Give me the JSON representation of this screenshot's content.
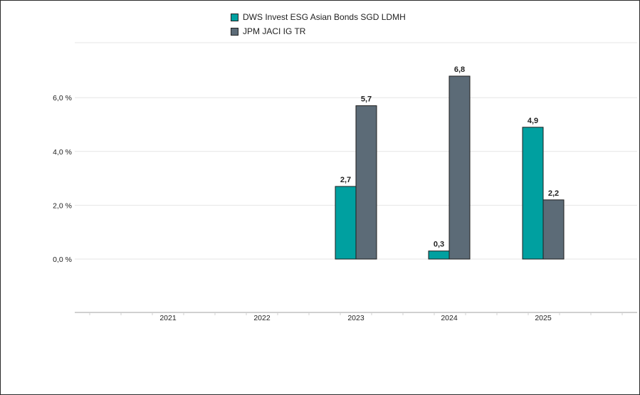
{
  "chart_data": {
    "type": "bar",
    "categories": [
      "2021",
      "2022",
      "2023",
      "2024",
      "2025"
    ],
    "series": [
      {
        "name": "DWS Invest ESG Asian Bonds SGD LDMH",
        "color": "#00A0A0",
        "values": [
          null,
          null,
          2.7,
          0.3,
          4.9
        ],
        "labels": [
          "",
          "",
          "2,7",
          "0,3",
          "4,9"
        ]
      },
      {
        "name": "JPM JACI IG TR",
        "color": "#5C6B77",
        "values": [
          null,
          null,
          5.7,
          6.8,
          2.2
        ],
        "labels": [
          "",
          "",
          "5,7",
          "6,8",
          "2,2"
        ]
      }
    ],
    "yticks": [
      0,
      2,
      4,
      6
    ],
    "ytick_labels": [
      "0,0 %",
      "2,0 %",
      "4,0 %",
      "6,0 %"
    ],
    "ylim": [
      -2,
      7.5
    ],
    "grid": true,
    "legend": "top-center",
    "title": "",
    "xlabel": "",
    "ylabel": ""
  }
}
